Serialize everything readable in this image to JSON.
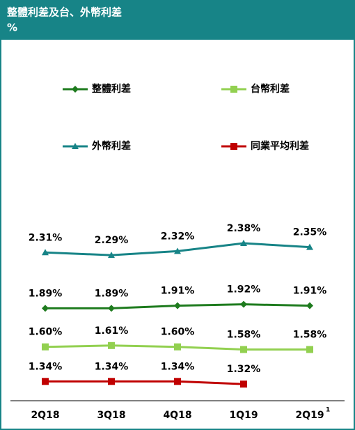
{
  "chart_data": {
    "type": "line",
    "title": "整體利差及台、外幣利差",
    "subtitle": "%",
    "categories": [
      "2Q18",
      "3Q18",
      "4Q18",
      "1Q19",
      "2Q19"
    ],
    "category_notes": [
      null,
      null,
      null,
      null,
      "1"
    ],
    "ylim": [
      1.2,
      2.6
    ],
    "series": [
      {
        "name": "整體利差",
        "color": "#1e7b1e",
        "marker": "diamond",
        "values": [
          1.89,
          1.89,
          1.91,
          1.92,
          1.91
        ],
        "value_labels": [
          "1.89%",
          "1.89%",
          "1.91%",
          "1.92%",
          "1.91%"
        ]
      },
      {
        "name": "台幣利差",
        "color": "#92d050",
        "marker": "square",
        "values": [
          1.6,
          1.61,
          1.6,
          1.58,
          1.58
        ],
        "value_labels": [
          "1.60%",
          "1.61%",
          "1.60%",
          "1.58%",
          "1.58%"
        ]
      },
      {
        "name": "外幣利差",
        "color": "#178487",
        "marker": "triangle",
        "values": [
          2.31,
          2.29,
          2.32,
          2.38,
          2.35
        ],
        "value_labels": [
          "2.31%",
          "2.29%",
          "2.32%",
          "2.38%",
          "2.35%"
        ]
      },
      {
        "name": "同業平均利差",
        "color": "#c00000",
        "marker": "square",
        "values": [
          1.34,
          1.34,
          1.34,
          1.32,
          null
        ],
        "value_labels": [
          "1.34%",
          "1.34%",
          "1.34%",
          "1.32%",
          null
        ]
      }
    ]
  }
}
